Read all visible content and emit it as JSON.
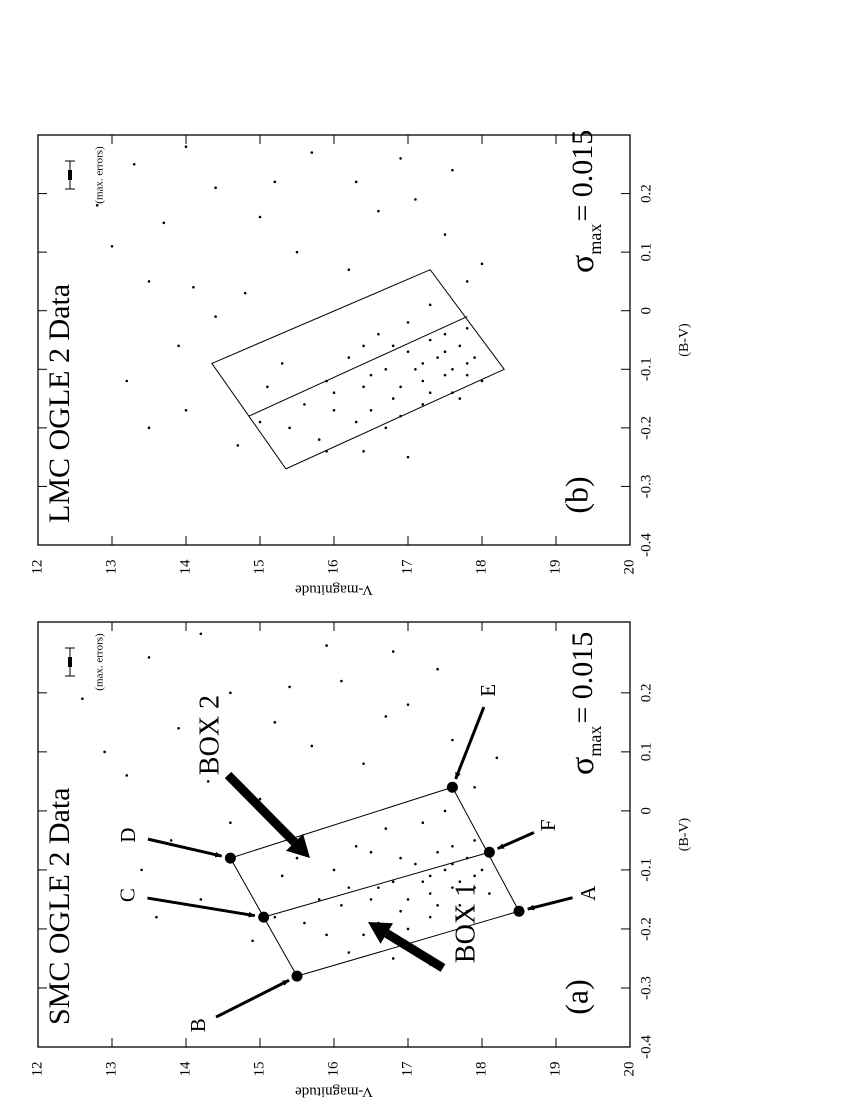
{
  "chart_data": [
    {
      "type": "scatter",
      "title": "SMC OGLE 2 Data",
      "panel_label": "(a)",
      "xlabel": "(B-V)",
      "ylabel": "V-magnitude",
      "error_note": "(max. errors)",
      "sigma_symbol": "σ",
      "sigma_subscript": "max",
      "sigma_value": "= 0.015",
      "xlim": [
        -0.4,
        0.32
      ],
      "ylim": [
        12,
        20
      ],
      "y_inverted": true,
      "xticks": [
        -0.4,
        -0.3,
        -0.2,
        -0.1,
        0,
        0.1,
        0.2
      ],
      "yticks": [
        12,
        13,
        14,
        15,
        16,
        17,
        18,
        19,
        20
      ],
      "color": "#000000",
      "x": [
        -0.12,
        -0.1,
        -0.15,
        -0.08,
        -0.13,
        -0.17,
        -0.11,
        -0.14,
        -0.09,
        -0.16,
        -0.19,
        -0.12,
        -0.07,
        -0.18,
        -0.1,
        -0.13,
        -0.21,
        -0.15,
        -0.06,
        -0.11,
        -0.2,
        -0.14,
        -0.08,
        -0.16,
        -0.12,
        -0.22,
        -0.09,
        -0.17,
        -0.05,
        -0.13,
        -0.15,
        -0.1,
        -0.19,
        -0.06,
        -0.13,
        -0.21,
        -0.08,
        -0.16,
        -0.03,
        -0.11,
        -0.02,
        -0.24,
        -0.18,
        0,
        -0.07,
        0.15,
        0.22,
        0.05,
        0.18,
        0.26,
        -0.05,
        0.1,
        0.28,
        0.08,
        0.12,
        -0.15,
        0.2,
        0.02,
        -0.22,
        0.24,
        0.06,
        0.16,
        -0.1,
        0.3,
        0.11,
        0.04,
        -0.25,
        0.19,
        -0.02,
        0.14,
        0.27,
        0.09,
        -0.18,
        0.21,
        -0.26
      ],
      "y": [
        17.2,
        17.5,
        17.0,
        17.8,
        17.6,
        16.9,
        17.9,
        17.3,
        17.1,
        17.7,
        16.6,
        16.8,
        17.4,
        17.3,
        18.0,
        17.9,
        16.4,
        16.5,
        17.6,
        17.3,
        17.0,
        18.1,
        16.9,
        17.4,
        17.7,
        16.9,
        17.6,
        17.8,
        17.9,
        16.6,
        15.8,
        16.0,
        15.6,
        16.3,
        16.2,
        15.9,
        15.5,
        16.1,
        16.7,
        15.3,
        17.2,
        16.2,
        15.2,
        17.5,
        16.5,
        15.2,
        16.1,
        14.3,
        17.0,
        13.5,
        13.8,
        12.9,
        15.9,
        16.4,
        17.6,
        14.2,
        14.6,
        15.0,
        14.9,
        17.4,
        13.2,
        16.7,
        13.4,
        14.2,
        15.7,
        17.9,
        16.8,
        12.6,
        14.6,
        13.9,
        16.8,
        18.2,
        13.6,
        15.4,
        17.3
      ],
      "box": {
        "bv": [
          -0.28,
          -0.08,
          0.04,
          -0.17
        ],
        "v": [
          15.5,
          14.6,
          17.6,
          18.5
        ]
      },
      "midline": {
        "bv": [
          -0.18,
          -0.07
        ],
        "v": [
          15.05,
          18.1
        ]
      },
      "labeled_points": [
        {
          "label": "A",
          "bv": -0.17,
          "v": 18.5
        },
        {
          "label": "B",
          "bv": -0.28,
          "v": 15.5
        },
        {
          "label": "C",
          "bv": -0.18,
          "v": 15.05
        },
        {
          "label": "D",
          "bv": -0.08,
          "v": 14.6
        },
        {
          "label": "E",
          "bv": 0.04,
          "v": 17.6
        },
        {
          "label": "F",
          "bv": -0.07,
          "v": 18.1
        }
      ],
      "annotations": [
        "BOX 1",
        "BOX 2"
      ]
    },
    {
      "type": "scatter",
      "title": "LMC OGLE 2 Data",
      "panel_label": "(b)",
      "xlabel": "(B-V)",
      "ylabel": "V-magnitude",
      "error_note": "(max. errors)",
      "sigma_symbol": "σ",
      "sigma_subscript": "max",
      "sigma_value": "= 0.015",
      "xlim": [
        -0.4,
        0.3
      ],
      "ylim": [
        12,
        20
      ],
      "y_inverted": true,
      "xticks": [
        -0.4,
        -0.3,
        -0.2,
        -0.1,
        0,
        0.1,
        0.2
      ],
      "yticks": [
        12,
        13,
        14,
        15,
        16,
        17,
        18,
        19,
        20
      ],
      "color": "#000000",
      "x": [
        -0.1,
        -0.08,
        -0.13,
        -0.06,
        -0.11,
        -0.15,
        -0.09,
        -0.12,
        -0.07,
        -0.14,
        -0.17,
        -0.1,
        -0.05,
        -0.16,
        -0.08,
        -0.11,
        -0.19,
        -0.13,
        -0.04,
        -0.09,
        -0.18,
        -0.12,
        -0.06,
        -0.14,
        -0.1,
        -0.2,
        -0.07,
        -0.15,
        -0.03,
        -0.11,
        -0.16,
        -0.12,
        -0.2,
        -0.08,
        -0.14,
        -0.22,
        -0.09,
        -0.17,
        -0.04,
        -0.13,
        -0.02,
        -0.24,
        -0.19,
        0.01,
        -0.06,
        0.16,
        0.22,
        0.04,
        0.19,
        0.25,
        -0.06,
        0.11,
        0.27,
        0.07,
        0.13,
        -0.17,
        0.21,
        0.03,
        -0.23,
        0.24,
        0.05,
        0.17,
        -0.12,
        0.28,
        0.1,
        0.05,
        -0.24,
        0.18,
        -0.01,
        0.15,
        0.26,
        0.08,
        -0.2,
        0.22,
        -0.25
      ],
      "y": [
        17.1,
        17.4,
        16.9,
        17.7,
        17.5,
        16.8,
        17.8,
        17.2,
        17.0,
        17.6,
        16.5,
        16.7,
        17.3,
        17.2,
        17.9,
        17.8,
        16.3,
        16.4,
        17.5,
        17.2,
        16.9,
        18.0,
        16.8,
        17.3,
        17.6,
        16.7,
        17.5,
        17.7,
        17.8,
        16.5,
        15.6,
        15.9,
        15.4,
        16.2,
        16.0,
        15.8,
        15.3,
        16.0,
        16.6,
        15.1,
        17.0,
        15.9,
        15.0,
        17.3,
        16.4,
        15.0,
        16.3,
        14.1,
        17.1,
        13.3,
        13.9,
        13.0,
        15.7,
        16.2,
        17.5,
        14.0,
        14.4,
        14.8,
        14.7,
        17.6,
        13.5,
        16.6,
        13.2,
        14.0,
        15.5,
        17.8,
        16.4,
        12.8,
        14.4,
        13.7,
        16.9,
        18.0,
        13.5,
        15.2,
        17.0
      ],
      "box": {
        "bv": [
          -0.09,
          0.07,
          -0.1,
          -0.27
        ],
        "v": [
          14.35,
          17.3,
          18.3,
          15.35
        ]
      },
      "midline": {
        "bv": [
          -0.18,
          -0.01
        ],
        "v": [
          14.85,
          17.8
        ]
      }
    }
  ]
}
